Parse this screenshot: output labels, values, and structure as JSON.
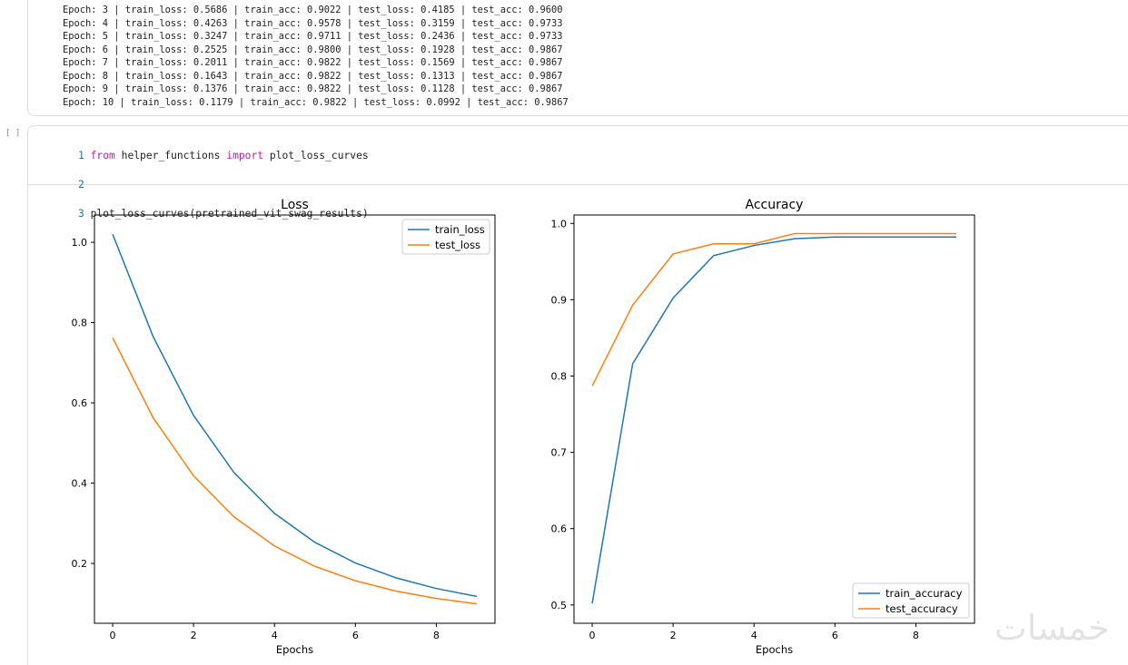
{
  "training_log": [
    "Epoch: 3 | train_loss: 0.5686 | train_acc: 0.9022 | test_loss: 0.4185 | test_acc: 0.9600",
    "Epoch: 4 | train_loss: 0.4263 | train_acc: 0.9578 | test_loss: 0.3159 | test_acc: 0.9733",
    "Epoch: 5 | train_loss: 0.3247 | train_acc: 0.9711 | test_loss: 0.2436 | test_acc: 0.9733",
    "Epoch: 6 | train_loss: 0.2525 | train_acc: 0.9800 | test_loss: 0.1928 | test_acc: 0.9867",
    "Epoch: 7 | train_loss: 0.2011 | train_acc: 0.9822 | test_loss: 0.1569 | test_acc: 0.9867",
    "Epoch: 8 | train_loss: 0.1643 | train_acc: 0.9822 | test_loss: 0.1313 | test_acc: 0.9867",
    "Epoch: 9 | train_loss: 0.1376 | train_acc: 0.9822 | test_loss: 0.1128 | test_acc: 0.9867",
    "Epoch: 10 | train_loss: 0.1179 | train_acc: 0.9822 | test_loss: 0.0992 | test_acc: 0.9867"
  ],
  "code_cell": {
    "bracket": "[ ]",
    "lines": [
      {
        "num": "1",
        "kw1": "from",
        "a": " helper_functions ",
        "kw2": "import",
        "b": " plot_loss_curves"
      },
      {
        "num": "2"
      },
      {
        "num": "3",
        "text": "plot_loss_curves(pretrained_vit_swag_results)"
      }
    ]
  },
  "watermark": "خمسات",
  "chart_data": [
    {
      "type": "line",
      "title": "Loss",
      "xlabel": "Epochs",
      "ylabel": "",
      "x": [
        0,
        1,
        2,
        3,
        4,
        5,
        6,
        7,
        8,
        9
      ],
      "xlim": [
        -0.45,
        9.45
      ],
      "ylim": [
        0.051,
        1.068
      ],
      "xticks": [
        "0",
        "2",
        "4",
        "6",
        "8"
      ],
      "yticks": [
        "0.2",
        "0.4",
        "0.6",
        "0.8",
        "1.0"
      ],
      "legend": "top-right",
      "series": [
        {
          "name": "train_loss",
          "color": "#1f77b4",
          "values": [
            1.02,
            0.765,
            0.5686,
            0.4263,
            0.3247,
            0.2525,
            0.2011,
            0.1643,
            0.1376,
            0.1179
          ]
        },
        {
          "name": "test_loss",
          "color": "#ff7f0e",
          "values": [
            0.762,
            0.563,
            0.4185,
            0.3159,
            0.2436,
            0.1928,
            0.1569,
            0.1313,
            0.1128,
            0.0992
          ]
        }
      ]
    },
    {
      "type": "line",
      "title": "Accuracy",
      "xlabel": "Epochs",
      "ylabel": "",
      "x": [
        0,
        1,
        2,
        3,
        4,
        5,
        6,
        7,
        8,
        9
      ],
      "xlim": [
        -0.45,
        9.45
      ],
      "ylim": [
        0.476,
        1.011
      ],
      "xticks": [
        "0",
        "2",
        "4",
        "6",
        "8"
      ],
      "yticks": [
        "0.5",
        "0.6",
        "0.7",
        "0.8",
        "0.9",
        "1.0"
      ],
      "legend": "bottom-right",
      "series": [
        {
          "name": "train_accuracy",
          "color": "#1f77b4",
          "values": [
            0.502,
            0.816,
            0.9022,
            0.9578,
            0.9711,
            0.98,
            0.9822,
            0.9822,
            0.9822,
            0.9822
          ]
        },
        {
          "name": "test_accuracy",
          "color": "#ff7f0e",
          "values": [
            0.787,
            0.893,
            0.96,
            0.9733,
            0.9733,
            0.9867,
            0.9867,
            0.9867,
            0.9867,
            0.9867
          ]
        }
      ]
    }
  ]
}
